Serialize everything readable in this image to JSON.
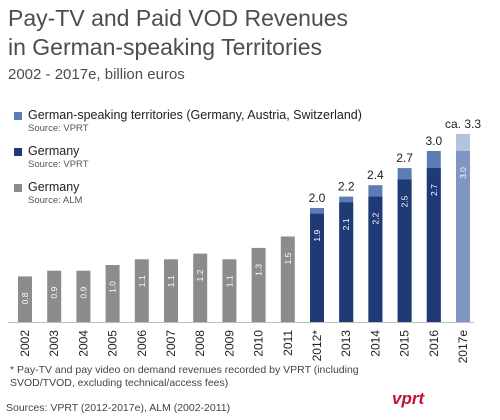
{
  "header": {
    "title_line1": "Pay-TV and Paid VOD Revenues",
    "title_line2": "in German-speaking Territories",
    "subtitle": "2002 - 2017e, billion euros"
  },
  "legend": [
    {
      "name": "German-speaking territories (Germany, Austria, Switzerland)",
      "source": "Source: VPRT",
      "color": "#5b7db3"
    },
    {
      "name": "Germany",
      "source": "Source: VPRT",
      "color": "#1f3a75"
    },
    {
      "name": "Germany",
      "source": "Source: ALM",
      "color": "#8c8c8c"
    }
  ],
  "footnote": "* Pay-TV and pay video on demand revenues recorded by VPRT (including SVOD/TVOD, excluding technical/access fees)",
  "sources": "Sources: VPRT (2012-2017e), ALM (2002-2011)",
  "logo_text": "vprt",
  "chart_data": {
    "type": "bar",
    "categories": [
      "2002",
      "2003",
      "2004",
      "2005",
      "2006",
      "2007",
      "2008",
      "2009",
      "2010",
      "2011",
      "2012*",
      "2013",
      "2014",
      "2015",
      "2016",
      "2017e"
    ],
    "ylim": [
      0,
      3.3
    ],
    "series": [
      {
        "name": "Germany (Source: ALM)",
        "color": "#8c8c8c",
        "values": [
          0.8,
          0.9,
          0.9,
          1.0,
          1.1,
          1.1,
          1.2,
          1.1,
          1.3,
          1.5,
          null,
          null,
          null,
          null,
          null,
          null
        ]
      },
      {
        "name": "Germany (Source: VPRT)",
        "color": "#1f3a75",
        "values": [
          null,
          null,
          null,
          null,
          null,
          null,
          null,
          null,
          null,
          null,
          1.9,
          2.1,
          2.2,
          2.5,
          2.7,
          3.0
        ]
      },
      {
        "name": "German-speaking territories (Source: VPRT)",
        "color": "#5b7db3",
        "values": [
          null,
          null,
          null,
          null,
          null,
          null,
          null,
          null,
          null,
          null,
          2.0,
          2.2,
          2.4,
          2.7,
          3.0,
          3.3
        ]
      }
    ],
    "inner_labels": [
      "0.8",
      "0.9",
      "0.9",
      "1.0",
      "1.1",
      "1.1",
      "1.2",
      "1.1",
      "1.3",
      "1.5",
      "1.9",
      "2.1",
      "2.2",
      "2.5",
      "2.7",
      "3.0"
    ],
    "top_labels": [
      "",
      "",
      "",
      "",
      "",
      "",
      "",
      "",
      "",
      "",
      "2.0",
      "2.2",
      "2.4",
      "2.7",
      "3.0",
      "ca. 3.3"
    ],
    "estimate_category": "2017e",
    "estimate_colors": {
      "germany": "#7f95c2",
      "territories": "#b5c3de"
    }
  }
}
